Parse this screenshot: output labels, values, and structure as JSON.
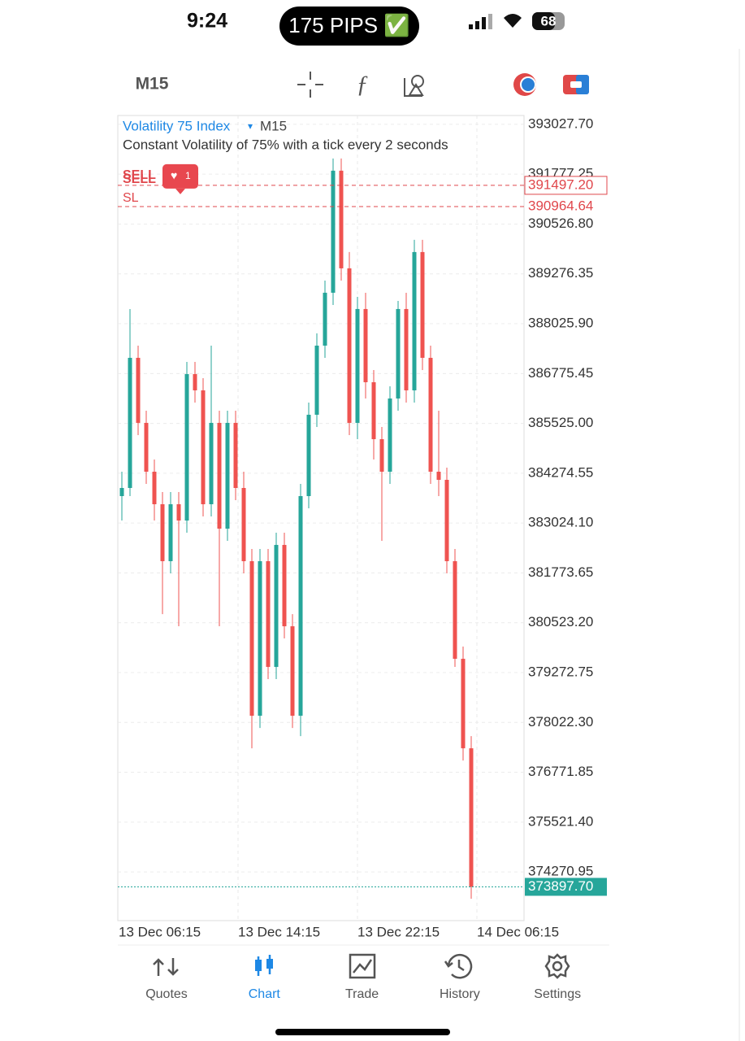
{
  "status_bar": {
    "time": "9:24",
    "pill": "175 PIPS ✅",
    "battery": "68"
  },
  "toolbar": {
    "timeframe": "M15"
  },
  "chart_data": {
    "type": "candlestick",
    "title": "Volatility 75 Index",
    "timeframe": "M15",
    "subtitle": "Constant Volatility of 75% with a tick every 2 seconds",
    "candles": [
      [
        383701,
        384313,
        383088,
        383905
      ],
      [
        383905,
        388395,
        383701,
        387170
      ],
      [
        387170,
        387476,
        385231,
        385538
      ],
      [
        385538,
        385844,
        384007,
        384313
      ],
      [
        384313,
        384619,
        383088,
        383497
      ],
      [
        383497,
        383803,
        380741,
        382068
      ],
      [
        382068,
        383803,
        381762,
        383497
      ],
      [
        383497,
        383803,
        380435,
        383088
      ],
      [
        383088,
        387068,
        382782,
        386762
      ],
      [
        386762,
        387068,
        386048,
        386354
      ],
      [
        386354,
        386660,
        383190,
        383497
      ],
      [
        383497,
        387476,
        383190,
        385538
      ],
      [
        385538,
        385844,
        380435,
        382884
      ],
      [
        382884,
        385844,
        382578,
        385538
      ],
      [
        385538,
        385844,
        383599,
        383905
      ],
      [
        383905,
        384313,
        381762,
        382068
      ],
      [
        382068,
        382374,
        377374,
        378190
      ],
      [
        378190,
        382374,
        377884,
        382068
      ],
      [
        382068,
        382374,
        379109,
        379415
      ],
      [
        379415,
        382782,
        379109,
        382476
      ],
      [
        382476,
        382782,
        380129,
        380435
      ],
      [
        380435,
        380741,
        377884,
        378190
      ],
      [
        378190,
        384007,
        377680,
        383701
      ],
      [
        383701,
        386048,
        383395,
        385742
      ],
      [
        385742,
        387783,
        385435,
        387476
      ],
      [
        387476,
        389109,
        387170,
        388803
      ],
      [
        388803,
        392171,
        388497,
        391865
      ],
      [
        391865,
        392171,
        389109,
        389415
      ],
      [
        389415,
        389824,
        385231,
        385538
      ],
      [
        385538,
        388701,
        385129,
        388395
      ],
      [
        388395,
        388803,
        386150,
        386558
      ],
      [
        386558,
        386864,
        384619,
        385129
      ],
      [
        385129,
        385435,
        382578,
        384313
      ],
      [
        384313,
        386456,
        384007,
        386150
      ],
      [
        386150,
        388599,
        385844,
        388395
      ],
      [
        388395,
        388803,
        386048,
        386354
      ],
      [
        386354,
        390130,
        386048,
        389824
      ],
      [
        389824,
        390130,
        386864,
        387170
      ],
      [
        387170,
        387476,
        384007,
        384313
      ],
      [
        384313,
        385844,
        383701,
        384109
      ],
      [
        384109,
        384415,
        381762,
        382068
      ],
      [
        382068,
        382374,
        379415,
        379619
      ],
      [
        379619,
        379925,
        377068,
        377374
      ],
      [
        377374,
        377680,
        373598,
        373897.7
      ]
    ],
    "x_labels": [
      "13 Dec 06:15",
      "13 Dec 14:15",
      "13 Dec 22:15",
      "14 Dec 06:15"
    ],
    "ylim": [
      373050,
      393250
    ],
    "yticks": [
      {
        "value": 393027.7,
        "label": "393027.70"
      },
      391777.25,
      {
        "value": 390526.8,
        "label": "390526.80"
      },
      389276.35,
      {
        "value": 388025.9,
        "label": "388025.90"
      },
      386775.45,
      {
        "value": 385525,
        "label": "385525.00"
      },
      384274.55,
      {
        "value": 383024.1,
        "label": "383024.10"
      },
      381773.65,
      {
        "value": 380523.2,
        "label": "380523.20"
      },
      379272.75,
      {
        "value": 378022.3,
        "label": "378022.30"
      },
      376771.85,
      {
        "value": 375521.4,
        "label": "375521.40"
      },
      374270.95
    ],
    "grid": true,
    "up_color": "#26a69a",
    "down_color": "#ef5350",
    "orders": [
      {
        "label": "SELL",
        "value": 391497.2,
        "value_label": "391497.20",
        "badge": "1"
      },
      {
        "label": "SL",
        "value": 390964.64
      }
    ],
    "current_price": {
      "value": 373897.7,
      "label": "373897.70"
    }
  },
  "nav": {
    "items": [
      "Quotes",
      "Chart",
      "Trade",
      "History",
      "Settings"
    ],
    "active": 1
  }
}
